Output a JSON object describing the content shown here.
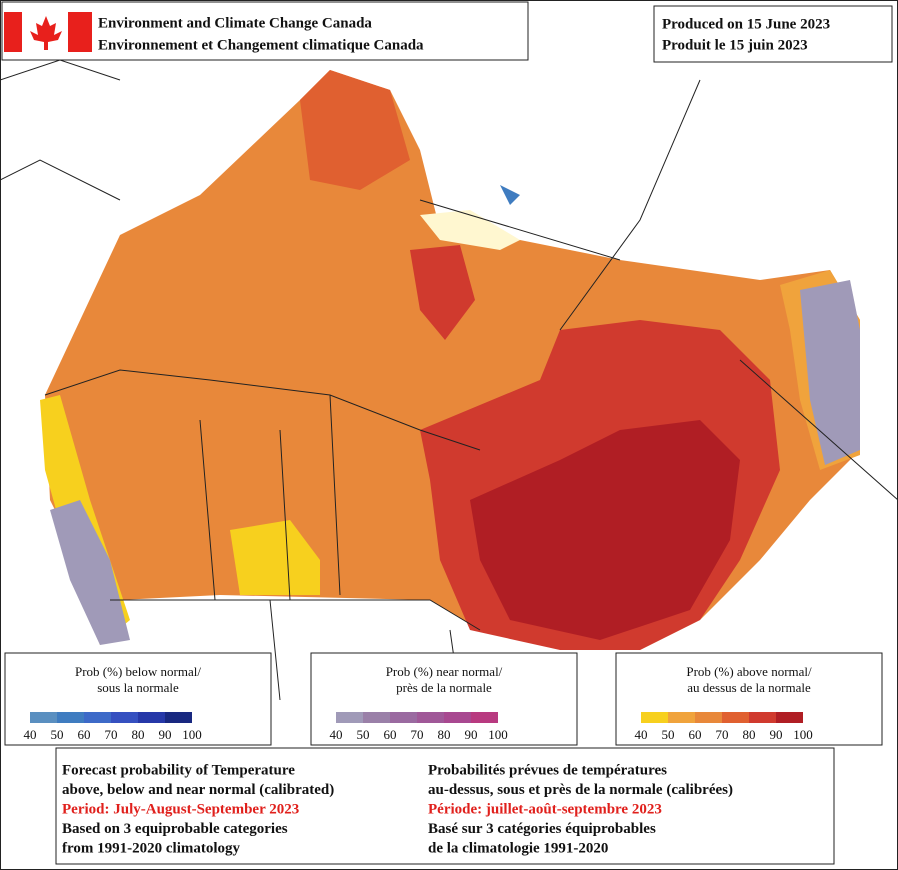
{
  "header": {
    "agency_en": "Environment and Climate Change Canada",
    "agency_fr": "Environnement et Changement climatique Canada"
  },
  "produced": {
    "en": "Produced on 15 June 2023",
    "fr": "Produit le 15 juin 2023"
  },
  "legends": [
    {
      "title": [
        "Prob (%) below normal/",
        "sous la normale"
      ],
      "ticks": [
        40,
        50,
        60,
        70,
        80,
        90,
        100
      ],
      "colors": [
        "#5a8fc0",
        "#3f7cc0",
        "#3d6ac8",
        "#3550c0",
        "#2638a8",
        "#182880"
      ]
    },
    {
      "title": [
        "Prob (%) near normal/",
        "près de la normale"
      ],
      "ticks": [
        40,
        50,
        60,
        70,
        80,
        90,
        100
      ],
      "colors": [
        "#a09ab8",
        "#9a80a8",
        "#9a6aa0",
        "#a05898",
        "#a84890",
        "#b83a80"
      ]
    },
    {
      "title": [
        "Prob (%) above normal/",
        "au dessus de la normale"
      ],
      "ticks": [
        40,
        50,
        60,
        70,
        80,
        90,
        100
      ],
      "colors": [
        "#f7d01e",
        "#f0a33c",
        "#e8883a",
        "#e06030",
        "#d03a2e",
        "#b01e24"
      ]
    }
  ],
  "footer": {
    "en": [
      "Forecast probability of Temperature",
      "above, below and near normal (calibrated)",
      "Period: July-August-September 2023",
      "Based on 3 equiprobable categories",
      " from 1991-2020 climatology"
    ],
    "fr": [
      "Probabilités prévues de températures",
      "au-dessus, sous et près de la normale (calibrées)",
      "Période: juillet-août-septembre 2023",
      "Basé sur 3 catégories équiprobables",
      "de la climatologie 1991-2020"
    ]
  }
}
